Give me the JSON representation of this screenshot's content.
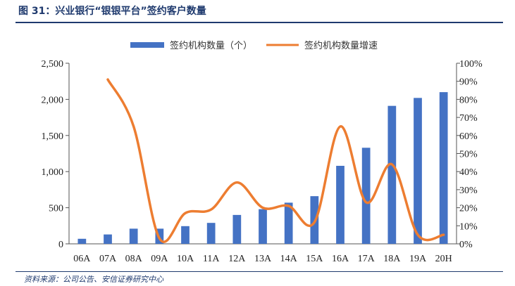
{
  "header": {
    "title": "图 31：兴业银行“银银平台”签约客户数量"
  },
  "footer": {
    "source": "资料来源：公司公告、安信证券研究中心"
  },
  "colors": {
    "bar": "#4472c4",
    "line": "#ed7d31",
    "header_text": "#1f3a6e"
  },
  "chart_data": {
    "type": "bar",
    "title": "兴业银行“银银平台”签约客户数量",
    "categories": [
      "06A",
      "07A",
      "08A",
      "09A",
      "10A",
      "11A",
      "12A",
      "13A",
      "14A",
      "15A",
      "16A",
      "17A",
      "18A",
      "19A",
      "20H"
    ],
    "series": [
      {
        "name": "签约机构数量（个）",
        "type": "bar",
        "axis": "left",
        "values": [
          70,
          130,
          210,
          210,
          245,
          290,
          400,
          480,
          570,
          660,
          1080,
          1330,
          1910,
          2020,
          2100
        ]
      },
      {
        "name": "签约机构数量增速",
        "type": "line",
        "axis": "right",
        "values": [
          null,
          0.91,
          0.65,
          0.03,
          0.17,
          0.19,
          0.34,
          0.2,
          0.21,
          0.12,
          0.65,
          0.23,
          0.44,
          0.05,
          0.05
        ]
      }
    ],
    "y_left": {
      "min": 0,
      "max": 2500,
      "ticks": [
        "0",
        "500",
        "1,000",
        "1,500",
        "2,000",
        "2,500"
      ]
    },
    "y_right": {
      "min": 0,
      "max": 1.0,
      "ticks": [
        "0%",
        "10%",
        "20%",
        "30%",
        "40%",
        "50%",
        "60%",
        "70%",
        "80%",
        "90%",
        "100%"
      ]
    },
    "legend_position": "top-center",
    "grid": false
  }
}
